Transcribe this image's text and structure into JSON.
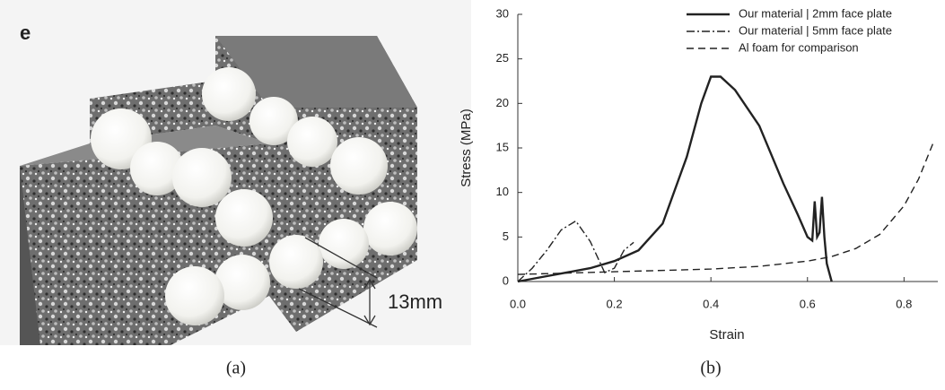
{
  "panel_a": {
    "label": "e",
    "dimension": "13mm",
    "caption": "(a)"
  },
  "chart_data": {
    "type": "line",
    "caption": "(b)",
    "x_label": "Strain",
    "y_label": "Stress (MPa)",
    "xlim": [
      0,
      0.87
    ],
    "ylim": [
      0,
      30
    ],
    "xticks": [
      {
        "value": 0,
        "label": "0.0"
      },
      0.2,
      0.4,
      0.6,
      0.8
    ],
    "yticks": [
      0,
      5,
      10,
      15,
      20,
      25,
      30
    ],
    "legend": "upper right",
    "series": [
      {
        "name": "Our material | 2mm face plate",
        "color": "#222222",
        "linestyle": "solid",
        "x": [
          0,
          0.05,
          0.1,
          0.15,
          0.2,
          0.25,
          0.3,
          0.35,
          0.38,
          0.4,
          0.42,
          0.45,
          0.5,
          0.55,
          0.58,
          0.6,
          0.61,
          0.615,
          0.62,
          0.625,
          0.63,
          0.635,
          0.64,
          0.645,
          0.65
        ],
        "values": [
          0,
          0.5,
          1,
          1.5,
          2.3,
          3.5,
          6.5,
          14,
          20,
          23,
          23,
          21.5,
          17.5,
          11,
          7.5,
          5,
          4.6,
          9,
          5,
          5.5,
          9.5,
          5,
          2,
          1,
          0
        ]
      },
      {
        "name": "Our material | 5mm face plate",
        "color": "#222222",
        "linestyle": "dashdot",
        "x": [
          0,
          0.03,
          0.06,
          0.09,
          0.12,
          0.15,
          0.18,
          0.2,
          0.22,
          0.24
        ],
        "values": [
          0,
          1.5,
          3.5,
          5.8,
          6.8,
          4.5,
          1,
          1.5,
          3.5,
          4.4
        ]
      },
      {
        "name": "Al foam for comparison",
        "color": "#222222",
        "linestyle": "dashed",
        "x": [
          0,
          0.2,
          0.4,
          0.5,
          0.6,
          0.65,
          0.7,
          0.75,
          0.8,
          0.83,
          0.86
        ],
        "values": [
          0.8,
          1.1,
          1.4,
          1.7,
          2.3,
          2.8,
          3.7,
          5.3,
          8.5,
          11.5,
          15.5
        ]
      }
    ]
  }
}
